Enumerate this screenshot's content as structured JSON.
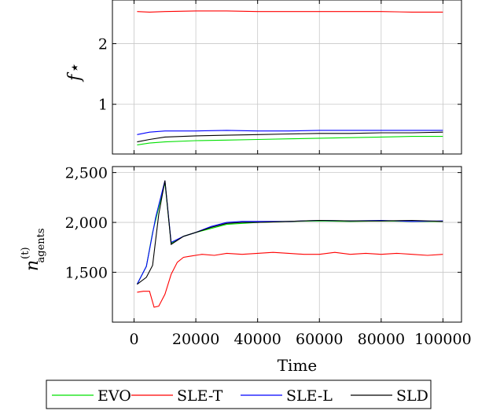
{
  "chart_data": [
    {
      "type": "line",
      "ylabel": "f⋆",
      "xlabel": "",
      "xlim": [
        -7000,
        106000
      ],
      "ylim": [
        0.18,
        2.72
      ],
      "yticks": [
        1,
        2
      ],
      "ytick_labels": [
        "1",
        "2"
      ],
      "xticks": [
        0,
        20000,
        40000,
        60000,
        80000,
        100000
      ],
      "grid": true,
      "series": [
        {
          "name": "EVO",
          "color": "#00e000",
          "x": [
            1000,
            5000,
            10000,
            20000,
            30000,
            40000,
            50000,
            60000,
            70000,
            80000,
            90000,
            100000
          ],
          "y": [
            0.33,
            0.36,
            0.38,
            0.4,
            0.41,
            0.42,
            0.43,
            0.44,
            0.45,
            0.46,
            0.47,
            0.47
          ]
        },
        {
          "name": "SLE-T",
          "color": "#ff0000",
          "x": [
            1000,
            5000,
            10000,
            20000,
            30000,
            40000,
            50000,
            60000,
            70000,
            80000,
            90000,
            100000
          ],
          "y": [
            2.53,
            2.52,
            2.53,
            2.54,
            2.54,
            2.53,
            2.53,
            2.53,
            2.53,
            2.53,
            2.52,
            2.52
          ]
        },
        {
          "name": "SLE-L",
          "color": "#0000ff",
          "x": [
            1000,
            5000,
            10000,
            20000,
            30000,
            40000,
            50000,
            60000,
            70000,
            80000,
            90000,
            100000
          ],
          "y": [
            0.5,
            0.54,
            0.56,
            0.56,
            0.57,
            0.56,
            0.56,
            0.57,
            0.57,
            0.57,
            0.57,
            0.57
          ]
        },
        {
          "name": "SLD",
          "color": "#000000",
          "x": [
            1000,
            5000,
            10000,
            20000,
            30000,
            40000,
            50000,
            60000,
            70000,
            80000,
            90000,
            100000
          ],
          "y": [
            0.38,
            0.42,
            0.46,
            0.48,
            0.49,
            0.5,
            0.51,
            0.52,
            0.52,
            0.53,
            0.53,
            0.54
          ]
        }
      ]
    },
    {
      "type": "line",
      "ylabel": "n",
      "ylabel_superscript": "(t)",
      "ylabel_subscript": "agents",
      "xlabel": "Time",
      "xlim": [
        -7000,
        106000
      ],
      "ylim": [
        1000,
        2560
      ],
      "yticks": [
        1500,
        2000,
        2500
      ],
      "ytick_labels": [
        "1,500",
        "2,000",
        "2,500"
      ],
      "xticks": [
        0,
        20000,
        40000,
        60000,
        80000,
        100000
      ],
      "xtick_labels": [
        "0",
        "20000",
        "40000",
        "60000",
        "80000",
        "100000"
      ],
      "grid": true,
      "series": [
        {
          "name": "EVO",
          "color": "#00e000",
          "x": [
            1000,
            4000,
            6000,
            10000,
            12000,
            16000,
            20000,
            25000,
            30000,
            35000,
            40000,
            50000,
            60000,
            70000,
            80000,
            90000,
            100000
          ],
          "y": [
            1380,
            1560,
            1900,
            2400,
            1790,
            1860,
            1900,
            1940,
            1980,
            1990,
            2000,
            2010,
            2015,
            2010,
            2015,
            2010,
            2010
          ]
        },
        {
          "name": "SLE-T",
          "color": "#ff0000",
          "x": [
            1000,
            3000,
            5000,
            6500,
            8000,
            10000,
            12000,
            14000,
            16000,
            18000,
            22000,
            26000,
            30000,
            35000,
            40000,
            45000,
            50000,
            55000,
            60000,
            65000,
            70000,
            75000,
            80000,
            85000,
            90000,
            95000,
            100000
          ],
          "y": [
            1300,
            1310,
            1310,
            1150,
            1160,
            1280,
            1480,
            1600,
            1650,
            1660,
            1680,
            1670,
            1690,
            1680,
            1690,
            1700,
            1690,
            1680,
            1680,
            1700,
            1680,
            1690,
            1680,
            1690,
            1680,
            1670,
            1680
          ]
        },
        {
          "name": "SLE-L",
          "color": "#0000ff",
          "x": [
            1000,
            4000,
            7000,
            10000,
            12000,
            16000,
            20000,
            25000,
            30000,
            35000,
            40000,
            50000,
            60000,
            70000,
            80000,
            90000,
            100000
          ],
          "y": [
            1380,
            1560,
            2050,
            2420,
            1800,
            1860,
            1900,
            1960,
            2000,
            2010,
            2010,
            2010,
            2020,
            2015,
            2020,
            2010,
            2015
          ]
        },
        {
          "name": "SLD",
          "color": "#000000",
          "x": [
            1000,
            4000,
            6000,
            8000,
            10000,
            12000,
            16000,
            20000,
            25000,
            30000,
            35000,
            40000,
            50000,
            60000,
            70000,
            80000,
            90000,
            100000
          ],
          "y": [
            1380,
            1450,
            1570,
            2080,
            2420,
            1780,
            1860,
            1900,
            1950,
            1990,
            2000,
            2000,
            2010,
            2020,
            2015,
            2015,
            2020,
            2010
          ]
        }
      ]
    }
  ],
  "legend": {
    "position": "bottom",
    "items": [
      {
        "label": "EVO",
        "color": "#00e000"
      },
      {
        "label": "SLE-T",
        "color": "#ff0000"
      },
      {
        "label": "SLE-L",
        "color": "#0000ff"
      },
      {
        "label": "SLD",
        "color": "#000000"
      }
    ]
  }
}
